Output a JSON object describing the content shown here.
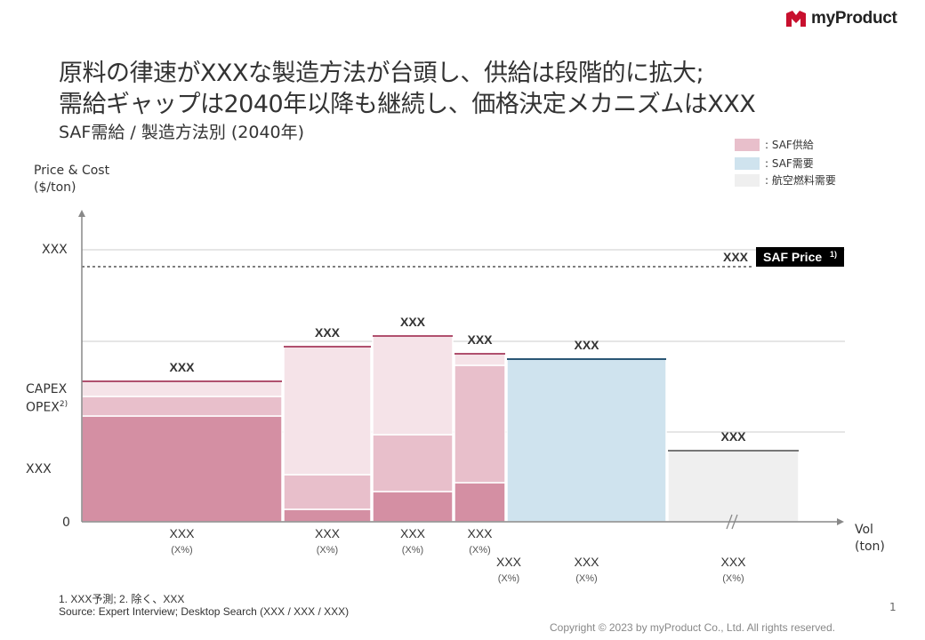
{
  "brand": {
    "name": "myProduct"
  },
  "title_lines": [
    "原料の律速がXXXな製造方法が台頭し、供給は段階的に拡大;",
    "需給ギャップは2040年以降も継続し、価格決定メカニズムはXXX"
  ],
  "subtitle": "SAF需給 / 製造方法別 (2040年)",
  "legend": [
    {
      "label": ": SAF供給",
      "color": "#e8bfcb"
    },
    {
      "label": ": SAF需要",
      "color": "#cfe3ee"
    },
    {
      "label": ": 航空燃料需要",
      "color": "#efefef"
    }
  ],
  "y_axis": {
    "label_line1": "Price & Cost",
    "label_line2": "($/ton)",
    "ticks": {
      "top": "XXX",
      "capex": "CAPEX",
      "opex": "OPEX",
      "opex_sup": "2)",
      "mid": "XXX",
      "zero": "0"
    }
  },
  "x_axis": {
    "label_line1": "Vol",
    "label_line2": "(ton)"
  },
  "chart_data": {
    "type": "bar",
    "subtype": "variable-width stacked (Marimekko supply curve)",
    "ylabel": "Price & Cost ($/ton)",
    "xlabel": "Vol (ton)",
    "price_line": {
      "label": "SAF Price",
      "label_sup": "1)",
      "value_label": "XXX",
      "style": "dashed"
    },
    "colors": {
      "supply_dark": "#d48fa3",
      "supply_mid": "#e8bfcb",
      "supply_light": "#f5e3e8",
      "supply_line": "#b0506e",
      "demand": "#cfe3ee",
      "demand_line": "#2a5675",
      "jet": "#efefef",
      "jet_line": "#777777"
    },
    "bars": [
      {
        "name": "supply-1",
        "width": 225,
        "segments": [
          {
            "value": 119,
            "color": "supply_dark"
          },
          {
            "value": 22,
            "color": "supply_mid"
          },
          {
            "value": 17,
            "color": "supply_light"
          }
        ],
        "top_label": "XXX",
        "x_label": "XXX",
        "x_sublabel": "(X%)",
        "label_row": 1
      },
      {
        "name": "supply-2",
        "width": 98,
        "segments": [
          {
            "value": 14,
            "color": "supply_dark"
          },
          {
            "value": 39,
            "color": "supply_mid"
          },
          {
            "value": 144,
            "color": "supply_light"
          }
        ],
        "top_label": "XXX",
        "x_label": "XXX",
        "x_sublabel": "(X%)",
        "label_row": 1
      },
      {
        "name": "supply-3",
        "width": 90,
        "segments": [
          {
            "value": 34,
            "color": "supply_dark"
          },
          {
            "value": 64,
            "color": "supply_mid"
          },
          {
            "value": 111,
            "color": "supply_light"
          }
        ],
        "top_label": "XXX",
        "x_label": "XXX",
        "x_sublabel": "(X%)",
        "label_row": 1
      },
      {
        "name": "supply-4",
        "width": 57,
        "segments": [
          {
            "value": 44,
            "color": "supply_dark"
          },
          {
            "value": 132,
            "color": "supply_mid"
          },
          {
            "value": 13,
            "color": "supply_light"
          }
        ],
        "top_label": "XXX",
        "x_label": "XXX",
        "x_sublabel": "(X%)",
        "label_row": 1
      },
      {
        "name": "gap-supply",
        "width": 0,
        "segments": [],
        "top_label": "",
        "x_label": "XXX",
        "x_sublabel": "(X%)",
        "label_row": 2
      },
      {
        "name": "saf-demand",
        "width": 179,
        "segments": [
          {
            "value": 183,
            "color": "demand"
          }
        ],
        "top_label": "XXX",
        "x_label": "XXX",
        "x_sublabel": "(X%)",
        "label_row": 2
      },
      {
        "name": "jet-fuel-demand",
        "width": 147,
        "segments": [
          {
            "value": 80,
            "color": "jet"
          }
        ],
        "top_label": "XXX",
        "x_label": "XXX",
        "x_sublabel": "(X%)",
        "label_row": 2
      }
    ],
    "gridlines": [
      203,
      306,
      101
    ],
    "ylim": [
      0,
      330
    ],
    "price_value": 287,
    "grid": true,
    "axis_break": true,
    "legend_position": "top-right"
  },
  "notes": {
    "footnote": "1. XXX予測;  2. 除く、XXX",
    "source": "Source: Expert Interview;  Desktop Search (XXX  / XXX  / XXX)"
  },
  "copyright": "Copyright © 2023 by myProduct Co., Ltd.  All rights reserved.",
  "page_number": "1"
}
